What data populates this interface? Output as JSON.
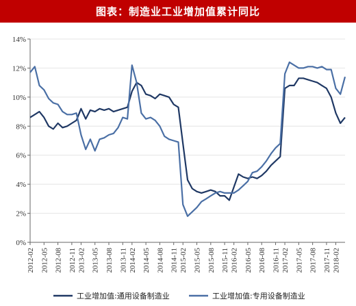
{
  "title": "图表：制造业工业增加值累计同比",
  "chart_data": {
    "type": "line",
    "title": "图表：制造业工业增加值累计同比",
    "xlabel": "",
    "ylabel": "",
    "ylim": [
      0,
      14
    ],
    "y_ticks": [
      "0%",
      "2%",
      "4%",
      "6%",
      "8%",
      "10%",
      "12%",
      "14%"
    ],
    "x_tick_labels": [
      "2012-02",
      "2012-05",
      "2012-08",
      "2012-11",
      "2013-02",
      "2013-05",
      "2013-08",
      "2013-11",
      "2014-02",
      "2014-05",
      "2014-08",
      "2014-11",
      "2015-02",
      "2015-05",
      "2015-08",
      "2015-11",
      "2016-02",
      "2016-05",
      "2016-08",
      "2016-11",
      "2017-02",
      "2017-05",
      "2017-08",
      "2017-11",
      "2018-02"
    ],
    "x": [
      "2012-02",
      "2012-03",
      "2012-04",
      "2012-05",
      "2012-06",
      "2012-07",
      "2012-08",
      "2012-09",
      "2012-10",
      "2012-11",
      "2012-12",
      "2013-02",
      "2013-03",
      "2013-04",
      "2013-05",
      "2013-06",
      "2013-07",
      "2013-08",
      "2013-09",
      "2013-10",
      "2013-11",
      "2013-12",
      "2014-02",
      "2014-03",
      "2014-04",
      "2014-05",
      "2014-06",
      "2014-07",
      "2014-08",
      "2014-09",
      "2014-10",
      "2014-11",
      "2014-12",
      "2015-02",
      "2015-03",
      "2015-04",
      "2015-05",
      "2015-06",
      "2015-07",
      "2015-08",
      "2015-09",
      "2015-10",
      "2015-11",
      "2015-12",
      "2016-02",
      "2016-03",
      "2016-04",
      "2016-05",
      "2016-06",
      "2016-07",
      "2016-08",
      "2016-09",
      "2016-10",
      "2016-11",
      "2016-12",
      "2017-02",
      "2017-03",
      "2017-04",
      "2017-05",
      "2017-06",
      "2017-07",
      "2017-08",
      "2017-09",
      "2017-10",
      "2017-11",
      "2017-12",
      "2018-02",
      "2018-03",
      "2018-04"
    ],
    "legend_position": "bottom",
    "series": [
      {
        "name": "工业增加值:通用设备制造业",
        "color": "#1f3864",
        "values": [
          8.6,
          8.8,
          9.0,
          8.6,
          8.0,
          7.8,
          8.2,
          7.9,
          8.0,
          8.2,
          8.4,
          9.2,
          8.5,
          9.1,
          9.0,
          9.2,
          9.1,
          9.2,
          9.0,
          9.1,
          9.2,
          9.3,
          10.4,
          11.0,
          10.8,
          10.2,
          10.1,
          9.9,
          10.2,
          10.1,
          10.0,
          9.5,
          9.3,
          6.8,
          4.3,
          3.7,
          3.5,
          3.4,
          3.5,
          3.6,
          3.5,
          3.2,
          3.2,
          2.9,
          3.8,
          4.7,
          4.5,
          4.4,
          4.5,
          4.4,
          4.6,
          4.9,
          5.3,
          5.6,
          5.9,
          10.6,
          10.8,
          10.8,
          11.3,
          11.3,
          11.2,
          11.1,
          11.0,
          10.8,
          10.6,
          10.0,
          8.9,
          8.2,
          8.6
        ]
      },
      {
        "name": "工业增加值:专用设备制造业",
        "color": "#4a6fa5",
        "values": [
          11.7,
          12.1,
          10.8,
          10.5,
          9.9,
          9.6,
          9.5,
          9.0,
          8.8,
          8.8,
          8.9,
          7.4,
          6.4,
          7.1,
          6.3,
          7.1,
          7.2,
          7.4,
          7.5,
          7.9,
          8.6,
          8.5,
          12.2,
          11.0,
          8.9,
          8.5,
          8.6,
          8.4,
          8.0,
          7.3,
          7.1,
          7.0,
          6.9,
          2.6,
          1.8,
          2.1,
          2.4,
          2.8,
          3.0,
          3.2,
          3.4,
          3.5,
          3.4,
          3.4,
          3.4,
          3.6,
          3.9,
          4.2,
          4.8,
          4.9,
          5.2,
          5.6,
          6.1,
          6.5,
          6.8,
          11.6,
          12.4,
          12.2,
          12.0,
          12.0,
          12.1,
          12.1,
          12.0,
          12.1,
          11.9,
          11.9,
          10.6,
          10.2,
          11.4
        ]
      }
    ]
  }
}
